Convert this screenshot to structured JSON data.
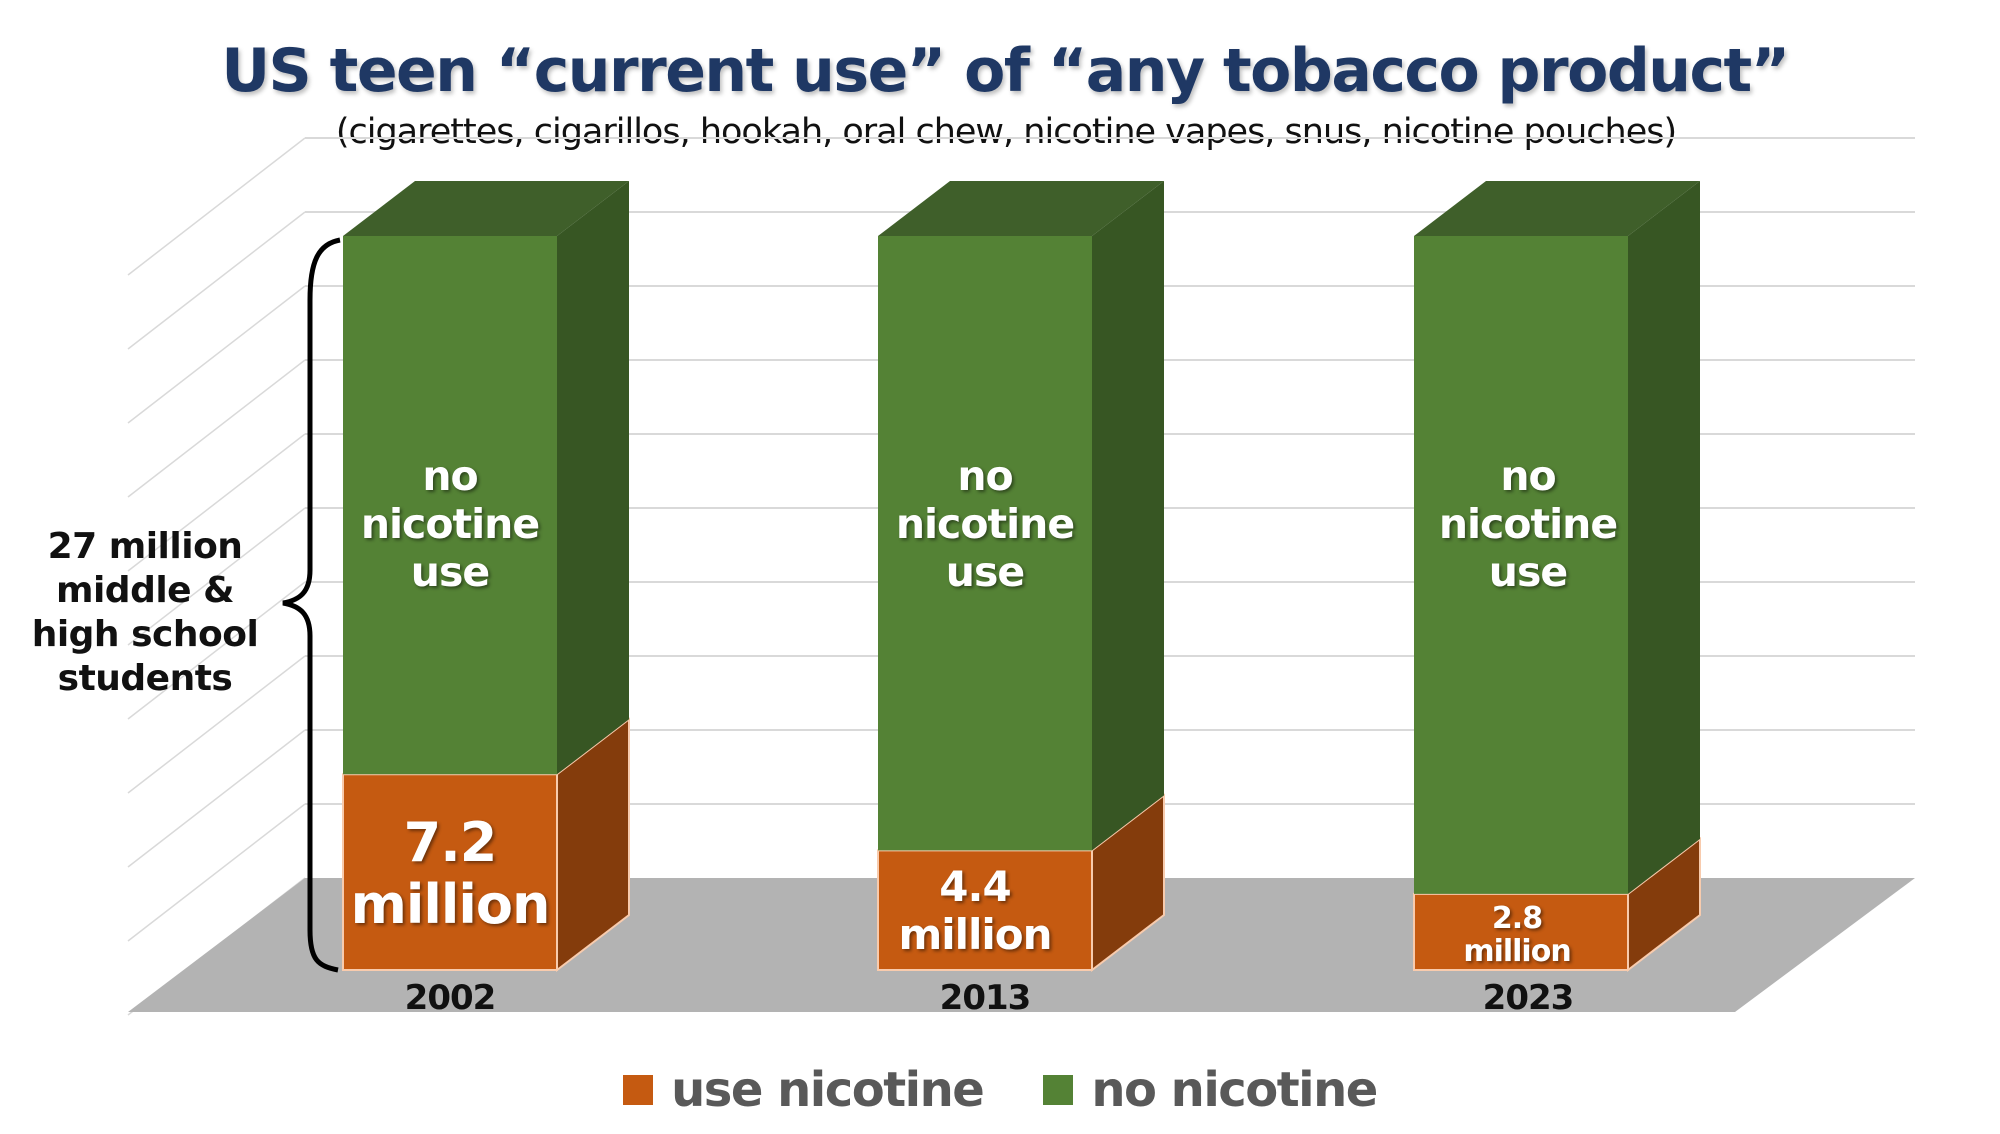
{
  "title": "US teen “current use” of “any tobacco product”",
  "subtitle": "(cigarettes, cigarillos, hookah, oral chew, nicotine vapes, snus, nicotine pouches)",
  "side_label": {
    "lines": [
      "27 million",
      "middle &",
      "high school",
      "students"
    ]
  },
  "colors": {
    "use_front": "#c55a11",
    "use_side": "#843c0c",
    "use_top": "#a04a0e",
    "no_front": "#548235",
    "no_side": "#375623",
    "no_top": "#3f5f2a",
    "floor": "#b3b3b3",
    "grid": "#d9d9d9",
    "title": "#1f3864"
  },
  "bars": [
    {
      "year": "2002",
      "use_value_label": "7.2",
      "use_unit_label": "million",
      "no_label_lines": [
        "no",
        "nicotine",
        "use"
      ]
    },
    {
      "year": "2013",
      "use_value_label": "4.4",
      "use_unit_label": "million",
      "no_label_lines": [
        "no",
        "nicotine",
        "use"
      ]
    },
    {
      "year": "2023",
      "use_value_label": "2.8",
      "use_unit_label": "million",
      "no_label_lines": [
        "no",
        "nicotine",
        "use"
      ]
    }
  ],
  "legend": {
    "items": [
      {
        "label": "use nicotine",
        "color": "#c55a11"
      },
      {
        "label": "no nicotine",
        "color": "#548235"
      }
    ]
  },
  "chart_data": {
    "type": "bar",
    "subtype": "stacked-3d",
    "title": "US teen “current use” of “any tobacco product”",
    "subtitle": "(cigarettes, cigarillos, hookah, oral chew, nicotine vapes, snus, nicotine pouches)",
    "categories": [
      "2002",
      "2013",
      "2023"
    ],
    "series": [
      {
        "name": "use nicotine",
        "values": [
          7.2,
          4.4,
          2.8
        ],
        "color": "#c55a11"
      },
      {
        "name": "no nicotine",
        "values": [
          19.8,
          22.6,
          24.2
        ],
        "color": "#548235"
      }
    ],
    "total_per_category": 27,
    "units": "million students",
    "annotations": [
      "27 million middle & high school students",
      "7.2 million",
      "4.4 million",
      "2.8 million",
      "no nicotine use"
    ],
    "xlabel": "",
    "ylabel": "",
    "ylim": [
      0,
      27
    ],
    "grid": true,
    "legend_position": "bottom"
  }
}
